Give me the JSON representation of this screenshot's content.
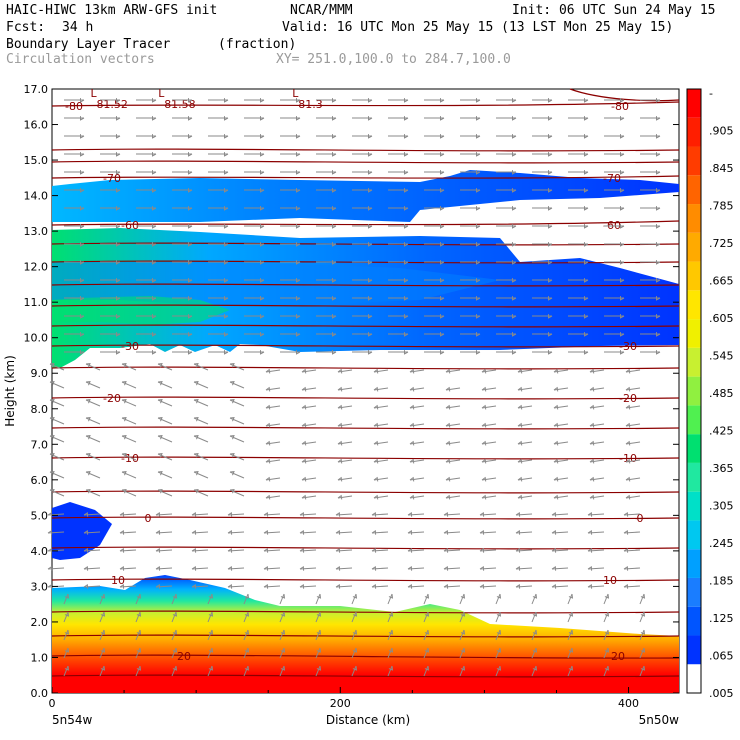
{
  "header": {
    "model": "HAIC-HIWC 13km ARW-GFS init",
    "org": "NCAR/MMM",
    "init": "Init: 06 UTC Sun 24 May 15",
    "fcst_label": "Fcst:",
    "fcst_value": "34 h",
    "valid": "Valid: 16 UTC Mon 25 May 15 (13 LST Mon 25 May 15)",
    "field": "Boundary Layer Tracer",
    "field_units": "(fraction)",
    "vectors": "Circulation vectors",
    "xy": "XY= 251.0,100.0 to 284.7,100.0"
  },
  "chart_data": {
    "type": "heatmap",
    "xlabel": "Distance (km)",
    "ylabel": "Height (km)",
    "xlim": [
      0,
      435
    ],
    "ylim": [
      0,
      17
    ],
    "x_ticks": [
      0,
      200,
      400
    ],
    "x_tick_labels": [
      "0",
      "200",
      "400"
    ],
    "y_ticks": [
      0,
      1,
      2,
      3,
      4,
      5,
      6,
      7,
      8,
      9,
      10,
      11,
      12,
      13,
      14,
      15,
      16,
      17
    ],
    "y_tick_labels": [
      "0.0",
      "1.0",
      "2.0",
      "3.0",
      "4.0",
      "5.0",
      "6.0",
      "7.0",
      "8.0",
      "9.0",
      "10.0",
      "11.0",
      "12.0",
      "13.0",
      "14.0",
      "15.0",
      "16.0",
      "17.0"
    ],
    "x_endpoints": {
      "left": "5n54w",
      "right": "5n50w"
    },
    "colorbar": {
      "labels": [
        ".005",
        ".065",
        ".125",
        ".185",
        ".245",
        ".305",
        ".365",
        ".425",
        ".485",
        ".545",
        ".605",
        ".665",
        ".725",
        ".785",
        ".845",
        ".905",
        "-"
      ],
      "colors": [
        "#ffffff",
        "#0033ff",
        "#0055ff",
        "#1a7dff",
        "#00a0ff",
        "#00c8f0",
        "#00e0c8",
        "#20e8a0",
        "#00e070",
        "#50f050",
        "#90f040",
        "#c8f030",
        "#f0f000",
        "#ffe600",
        "#ffc800",
        "#ffaa00",
        "#ff8c00",
        "#ff6400",
        "#ff3c00",
        "#ff1e00",
        "#ff0000"
      ]
    },
    "isotherms": [
      {
        "label": "-80",
        "values": [
          -80
        ]
      },
      {
        "label": "-70",
        "values": [
          -70
        ]
      },
      {
        "label": "-60",
        "values": [
          -60
        ]
      },
      {
        "label": "-30",
        "values": [
          -30
        ]
      },
      {
        "label": "-20",
        "values": [
          -20
        ]
      },
      {
        "label": "-10",
        "values": [
          -10
        ]
      },
      {
        "label": "0",
        "values": [
          0
        ]
      },
      {
        "label": "10",
        "values": [
          10
        ]
      },
      {
        "label": "20",
        "values": [
          20
        ]
      }
    ],
    "lows": [
      {
        "label": "L",
        "value": "81.52",
        "x": 35
      },
      {
        "label": "L",
        "value": "81.58",
        "x": 82
      },
      {
        "label": "L",
        "value": "81.3",
        "x": 175
      }
    ],
    "upper_layer": {
      "bottom_km": 9.5,
      "top_km": 14.4,
      "peak": 0.245
    },
    "mid_blob": {
      "x": [
        0,
        30
      ],
      "height_km": [
        4.2,
        5.2
      ]
    },
    "boundary_layer": {
      "top_km": [
        2.9,
        3.4,
        2.4,
        2.0,
        1.6
      ],
      "max": 0.905
    }
  }
}
